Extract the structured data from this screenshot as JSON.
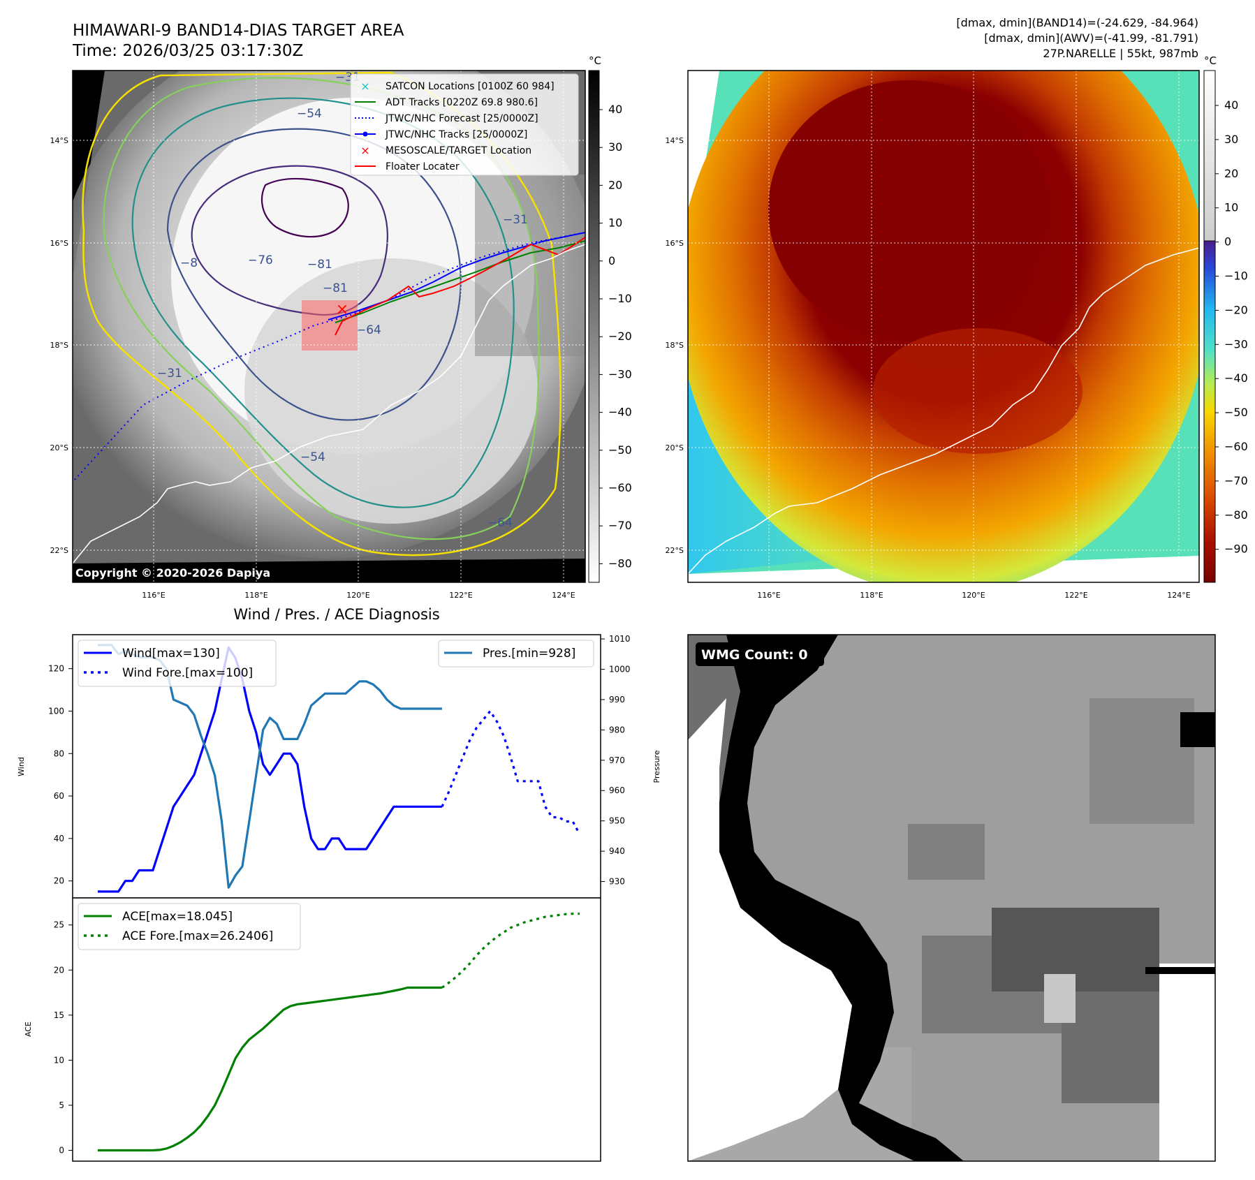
{
  "header": {
    "title_line1": "HIMAWARI-9 BAND14-DIAS TARGET AREA",
    "title_line2": "Time: 2026/03/25 03:17:30Z",
    "info_line1": "[dmax, dmin](BAND14)=(-24.629, -84.964)",
    "info_line2": "[dmax, dmin](AWV)=(-41.99, -81.791)",
    "info_line3": "27P.NARELLE | 55kt, 987mb"
  },
  "map_axes": {
    "lat_labels": [
      "14°S",
      "16°S",
      "18°S",
      "20°S",
      "22°S"
    ],
    "lon_labels": [
      "116°E",
      "118°E",
      "120°E",
      "122°E",
      "124°E"
    ],
    "lon_range": [
      114.5,
      124.5
    ],
    "lat_range": [
      -12.65,
      -22.6
    ]
  },
  "ir_panel": {
    "copyright": "Copyright © 2020-2026 Dapiya",
    "colorbar_unit": "°C",
    "colorbar_ticks": [
      "40",
      "30",
      "20",
      "10",
      "0",
      "−10",
      "−20",
      "−30",
      "−40",
      "−50",
      "−60",
      "−70",
      "−80"
    ],
    "contour_labels": [
      "−76",
      "−81",
      "−8",
      "−81",
      "−64",
      "−64",
      "−31",
      "−31",
      "−54",
      "−54",
      "−31"
    ],
    "legend": [
      {
        "label": "SATCON Locations [0100Z 60 984]",
        "color": "#17becf",
        "style": "x"
      },
      {
        "label": "ADT Tracks [0220Z 69.8 980.6]",
        "color": "#008000",
        "style": "line"
      },
      {
        "label": "JTWC/NHC Forecast [25/0000Z]",
        "color": "#0000ff",
        "style": "dotted"
      },
      {
        "label": "JTWC/NHC Tracks [25/0000Z]",
        "color": "#0000ff",
        "style": "line-dot"
      },
      {
        "label": "MESOSCALE/TARGET Location",
        "color": "#ff0000",
        "style": "x"
      },
      {
        "label": "Floater Locater",
        "color": "#ff0000",
        "style": "line"
      }
    ]
  },
  "awv_panel": {
    "colorbar_unit": "°C",
    "colorbar_ticks": [
      "40",
      "30",
      "20",
      "10",
      "0",
      "−10",
      "−20",
      "−30",
      "−40",
      "−50",
      "−60",
      "−70",
      "−80",
      "−90"
    ]
  },
  "wmg_panel": {
    "label": "WMG Count: 0"
  },
  "chart_data": [
    {
      "type": "line",
      "title": "Wind / Pres. / ACE Diagnosis",
      "xlabel": "",
      "ylabel": "Wind",
      "ylabel_right": "Pressure",
      "x_count": 71,
      "ylim": [
        12,
        136
      ],
      "ylim_right": [
        924.6,
        1011.4
      ],
      "yticks": [
        20,
        40,
        60,
        80,
        100,
        120
      ],
      "yticks_right": [
        930,
        940,
        950,
        960,
        970,
        980,
        990,
        1000,
        1010
      ],
      "series": [
        {
          "name": "Wind[max=130]",
          "color": "#0000ff",
          "style": "solid",
          "axis": "left",
          "x": [
            0,
            1,
            2,
            3,
            4,
            5,
            6,
            7,
            8,
            9,
            10,
            11,
            12,
            13,
            14,
            15,
            16,
            17,
            18,
            19,
            20,
            21,
            22,
            23,
            24,
            25,
            26,
            27,
            28,
            29,
            30,
            31,
            32,
            33,
            34,
            35,
            36,
            37,
            38,
            39,
            40,
            41,
            42,
            43,
            44,
            45,
            46,
            47,
            48,
            49,
            50
          ],
          "values": [
            15,
            15,
            15,
            15,
            20,
            20,
            25,
            25,
            25,
            35,
            45,
            55,
            60,
            65,
            70,
            80,
            90,
            100,
            115,
            130,
            125,
            115,
            100,
            90,
            75,
            70,
            75,
            80,
            80,
            75,
            55,
            40,
            35,
            35,
            40,
            40,
            35,
            35,
            35,
            35,
            40,
            45,
            50,
            55,
            55,
            55,
            55,
            55,
            55,
            55,
            55
          ]
        },
        {
          "name": "Wind Fore.[max=100]",
          "color": "#0000ff",
          "style": "dotted",
          "axis": "left",
          "x": [
            50,
            51,
            52,
            53,
            54,
            55,
            56,
            57,
            58,
            59,
            60,
            61,
            62,
            63,
            64,
            65,
            66,
            67,
            68,
            69,
            70
          ],
          "values": [
            55,
            62,
            70,
            78,
            86,
            92,
            96,
            100,
            95,
            88,
            78,
            67,
            67,
            67,
            67,
            55,
            50,
            50,
            48,
            48,
            42
          ]
        },
        {
          "name": "Pres.[min=928]",
          "color": "#1f77b4",
          "style": "solid",
          "axis": "right",
          "x": [
            0,
            1,
            2,
            3,
            4,
            5,
            6,
            7,
            8,
            9,
            10,
            11,
            12,
            13,
            14,
            15,
            16,
            17,
            18,
            19,
            20,
            21,
            22,
            23,
            24,
            25,
            26,
            27,
            28,
            29,
            30,
            31,
            32,
            33,
            34,
            35,
            36,
            37,
            38,
            39,
            40,
            41,
            42,
            43,
            44,
            45,
            46,
            47,
            48,
            49,
            50
          ],
          "values": [
            1008,
            1008,
            1008,
            1005,
            1006,
            1005,
            1004,
            1004,
            1004,
            1003,
            1000,
            990,
            989,
            988,
            985,
            978,
            972,
            965,
            950,
            928,
            932,
            935,
            950,
            965,
            980,
            984,
            982,
            977,
            977,
            977,
            982,
            988,
            990,
            992,
            992,
            992,
            992,
            994,
            996,
            996,
            995,
            993,
            990,
            988,
            987,
            987,
            987,
            987,
            987,
            987,
            987
          ]
        },
        {
          "name": "ACE[max=18.045]",
          "color": "#008000",
          "style": "solid",
          "axis": "ace",
          "x": [
            0,
            1,
            2,
            3,
            4,
            5,
            6,
            7,
            8,
            9,
            10,
            11,
            12,
            13,
            14,
            15,
            16,
            17,
            18,
            19,
            20,
            21,
            22,
            23,
            24,
            25,
            26,
            27,
            28,
            29,
            30,
            31,
            32,
            33,
            34,
            35,
            36,
            37,
            38,
            39,
            40,
            41,
            42,
            43,
            44,
            45,
            46,
            47,
            48,
            49,
            50
          ],
          "values": [
            0,
            0,
            0,
            0,
            0,
            0,
            0,
            0,
            0,
            0.05,
            0.2,
            0.5,
            0.9,
            1.4,
            2.0,
            2.8,
            3.8,
            5.0,
            6.6,
            8.4,
            10.2,
            11.4,
            12.3,
            12.9,
            13.5,
            14.2,
            14.9,
            15.6,
            16.0,
            16.2,
            16.3,
            16.4,
            16.5,
            16.6,
            16.7,
            16.8,
            16.9,
            17.0,
            17.1,
            17.2,
            17.3,
            17.4,
            17.55,
            17.7,
            17.85,
            18.045,
            18.045,
            18.045,
            18.045,
            18.045,
            18.045
          ]
        },
        {
          "name": "ACE Fore.[max=26.2406]",
          "color": "#008000",
          "style": "dotted",
          "axis": "ace",
          "x": [
            50,
            51,
            52,
            53,
            54,
            55,
            56,
            57,
            58,
            59,
            60,
            61,
            62,
            63,
            64,
            65,
            66,
            67,
            68,
            69,
            70
          ],
          "values": [
            18.045,
            18.6,
            19.2,
            19.9,
            20.7,
            21.6,
            22.4,
            23.1,
            23.7,
            24.2,
            24.7,
            25.0,
            25.3,
            25.5,
            25.7,
            25.9,
            26.0,
            26.1,
            26.2,
            26.24,
            26.2406
          ]
        }
      ]
    },
    {
      "type": "line",
      "title": "",
      "ylabel": "ACE",
      "ylim": [
        -1.2,
        28
      ],
      "yticks": [
        0,
        5,
        10,
        15,
        20,
        25
      ]
    }
  ]
}
